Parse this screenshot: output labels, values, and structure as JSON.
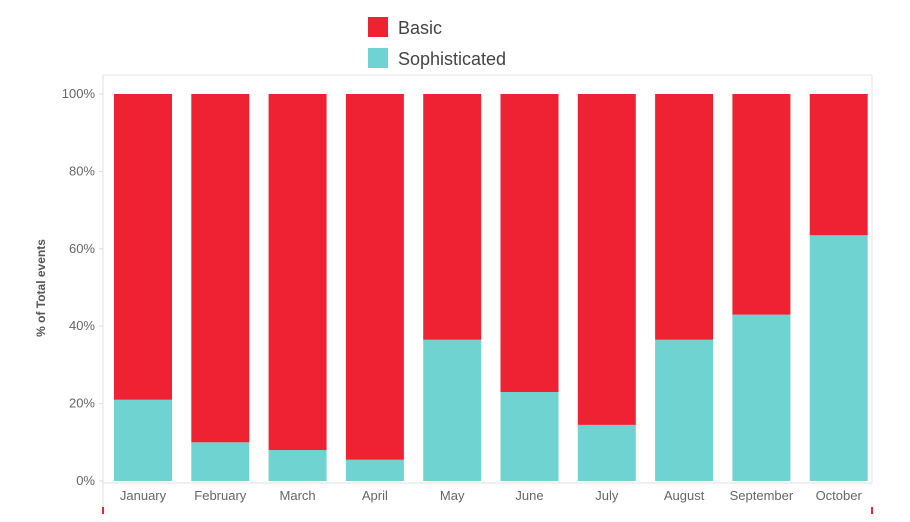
{
  "chart_data": {
    "type": "bar",
    "stacked": true,
    "categories": [
      "January",
      "February",
      "March",
      "April",
      "May",
      "June",
      "July",
      "August",
      "September",
      "October"
    ],
    "series": [
      {
        "name": "Sophisticated",
        "color": "#6fd3d2",
        "values": [
          21,
          10,
          8,
          5.5,
          36.5,
          23,
          14.5,
          36.5,
          43,
          63.5
        ]
      },
      {
        "name": "Basic",
        "color": "#ee2233",
        "values": [
          79,
          90,
          92,
          94.5,
          63.5,
          77,
          85.5,
          63.5,
          57,
          36.5
        ]
      }
    ],
    "legend": {
      "placement": "top-center",
      "order": [
        "Basic",
        "Sophisticated"
      ]
    },
    "title": "",
    "xlabel": "",
    "ylabel": "% of Total events",
    "ylim": [
      0,
      100
    ],
    "yticks": [
      0,
      20,
      40,
      60,
      80,
      100
    ],
    "ytick_labels": [
      "0%",
      "20%",
      "40%",
      "60%",
      "80%",
      "100%"
    ],
    "grid": false
  }
}
